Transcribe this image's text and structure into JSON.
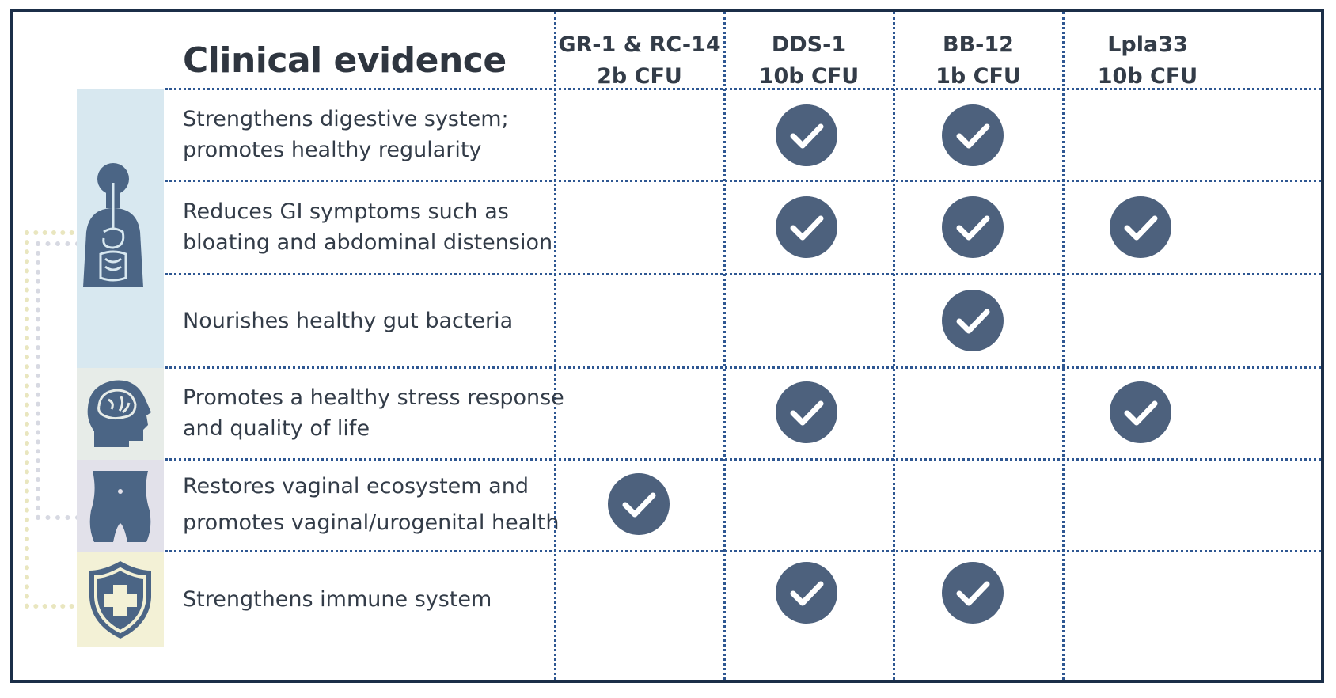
{
  "title": "Clinical evidence",
  "columns": [
    {
      "name": "GR-1 & RC-14",
      "dose": "2b CFU"
    },
    {
      "name": "DDS-1",
      "dose": "10b CFU"
    },
    {
      "name": "BB-12",
      "dose": "1b CFU"
    },
    {
      "name": "Lpla33",
      "dose": "10b CFU"
    }
  ],
  "rows": [
    {
      "label_lines": [
        "Strengthens digestive system;",
        "promotes healthy regularity"
      ],
      "checks": [
        false,
        true,
        true,
        false
      ]
    },
    {
      "label_lines": [
        "Reduces GI symptoms such as",
        "bloating and abdominal distension"
      ],
      "checks": [
        false,
        true,
        true,
        true
      ]
    },
    {
      "label_lines": [
        "Nourishes healthy gut bacteria"
      ],
      "checks": [
        false,
        false,
        true,
        false
      ]
    },
    {
      "label_lines": [
        "Promotes a healthy stress response",
        "and quality of life"
      ],
      "checks": [
        false,
        true,
        false,
        true
      ]
    },
    {
      "label_lines": [
        "Restores vaginal ecosystem and",
        "promotes vaginal/urogenital health"
      ],
      "checks": [
        true,
        false,
        false,
        false
      ]
    },
    {
      "label_lines": [
        "Strengthens immune system"
      ],
      "checks": [
        false,
        true,
        true,
        false
      ]
    }
  ],
  "icon_groups": [
    {
      "icon": "digestive-system-icon",
      "color": "#d8e8f0"
    },
    {
      "icon": "brain-head-icon",
      "color": "#e7ece8"
    },
    {
      "icon": "pelvis-icon",
      "color": "#e2e1ea"
    },
    {
      "icon": "shield-plus-icon",
      "color": "#f3f1d6"
    }
  ],
  "colors": {
    "frame": "#1b2e48",
    "check_fill": "#4d617d",
    "dotted_lines": "#2e5792",
    "icon_fill": "#4b6585"
  }
}
